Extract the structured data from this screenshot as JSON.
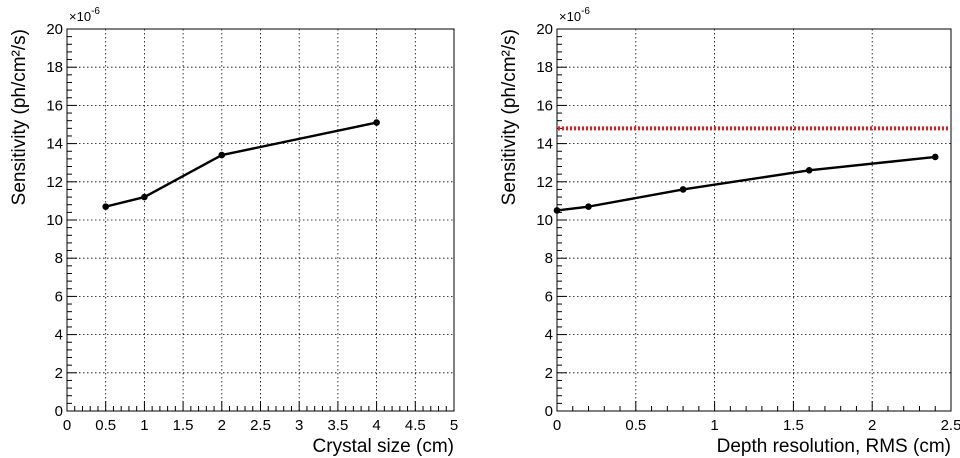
{
  "chart_data": [
    {
      "type": "line",
      "xlabel": "Crystal size (cm)",
      "ylabel": "Sensitivity (ph/cm²/s)",
      "y_exponent_label": "×10",
      "y_exponent_power": "-6",
      "xlim": [
        0,
        5
      ],
      "ylim": [
        0,
        20
      ],
      "xticks": [
        "0",
        "0.5",
        "1",
        "1.5",
        "2",
        "2.5",
        "3",
        "3.5",
        "4",
        "4.5",
        "5"
      ],
      "yticks": [
        "0",
        "2",
        "4",
        "6",
        "8",
        "10",
        "12",
        "14",
        "16",
        "18",
        "20"
      ],
      "grid": true,
      "series": [
        {
          "x": [
            0.5,
            1,
            2,
            4
          ],
          "y": [
            10.7,
            11.2,
            13.4,
            15.1
          ],
          "color": "#000000"
        }
      ]
    },
    {
      "type": "line",
      "xlabel": "Depth resolution, RMS (cm)",
      "ylabel": "Sensitivity (ph/cm²/s)",
      "y_exponent_label": "×10",
      "y_exponent_power": "-6",
      "xlim": [
        0,
        2.5
      ],
      "ylim": [
        0,
        20
      ],
      "xticks": [
        "0",
        "0.5",
        "1",
        "1.5",
        "2",
        "2.5"
      ],
      "yticks": [
        "0",
        "2",
        "4",
        "6",
        "8",
        "10",
        "12",
        "14",
        "16",
        "18",
        "20"
      ],
      "grid": true,
      "series": [
        {
          "x": [
            0,
            0.2,
            0.8,
            1.6,
            2.4
          ],
          "y": [
            10.5,
            10.7,
            11.6,
            12.6,
            13.3
          ],
          "color": "#000000"
        }
      ],
      "reference_line": {
        "y": 14.8,
        "color": "#e8191c",
        "style": "dotted"
      }
    }
  ]
}
